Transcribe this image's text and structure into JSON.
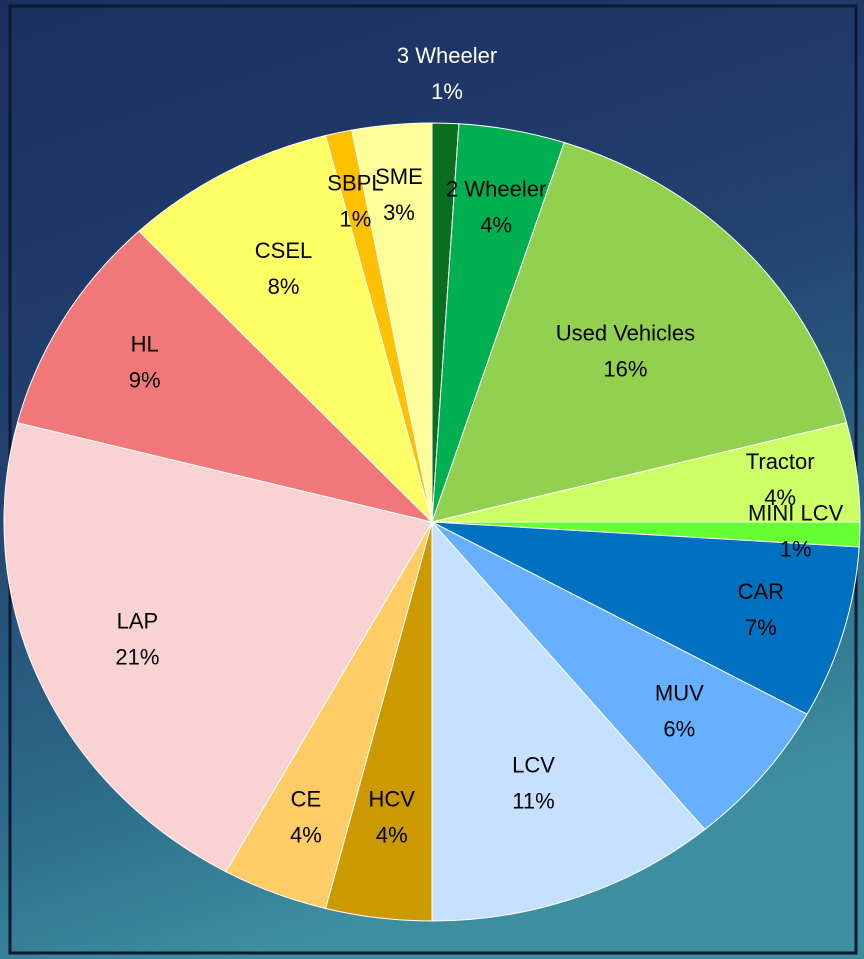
{
  "chart_data": {
    "type": "pie",
    "categories": [
      "3 Wheeler",
      "2 Wheeler",
      "Used Vehicles",
      "Tractor",
      "MINI LCV",
      "CAR",
      "MUV",
      "LCV",
      "HCV",
      "CE",
      "LAP",
      "HL",
      "CSEL",
      "SBPL",
      "SME"
    ],
    "values": [
      1,
      4,
      16,
      4,
      1,
      7,
      6,
      11,
      4,
      4,
      21,
      9,
      8,
      1,
      3
    ],
    "value_labels": [
      "1%",
      "4%",
      "16%",
      "4%",
      "1%",
      "7%",
      "6%",
      "11%",
      "4%",
      "4%",
      "21%",
      "9%",
      "8%",
      "1%",
      "3%"
    ],
    "colors": [
      "#0b6e1f",
      "#00b050",
      "#92d050",
      "#ccff66",
      "#66ff33",
      "#0070c0",
      "#66b0ff",
      "#c6e0ff",
      "#cc9900",
      "#ffcc66",
      "#f9d3d3",
      "#f07878",
      "#ffff66",
      "#ffc000",
      "#ffff99"
    ]
  }
}
